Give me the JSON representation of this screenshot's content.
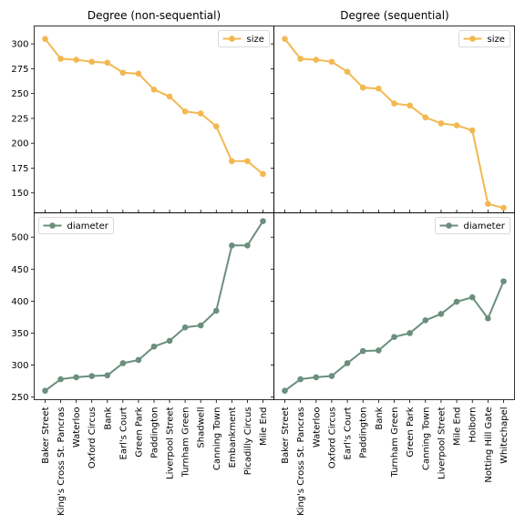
{
  "chart_data": [
    {
      "type": "line",
      "title": "Degree (non-sequential)",
      "xlabel": "",
      "ylabel": "",
      "ylim": [
        130,
        318
      ],
      "yticks": [
        150,
        175,
        200,
        225,
        250,
        275,
        300
      ],
      "legend": "upper right",
      "grid": false,
      "series": [
        {
          "name": "size",
          "color": "#f2b851",
          "values": [
            305,
            285,
            284,
            282,
            281,
            271,
            270,
            254,
            247,
            232,
            230,
            217,
            182,
            182,
            169
          ]
        }
      ]
    },
    {
      "type": "line",
      "title": "Degree (sequential)",
      "xlabel": "",
      "ylabel": "",
      "ylim": [
        130,
        318
      ],
      "yticks": [
        150,
        175,
        200,
        225,
        250,
        275,
        300
      ],
      "legend": "upper right",
      "grid": false,
      "series": [
        {
          "name": "size",
          "color": "#f2b851",
          "values": [
            305,
            285,
            284,
            282,
            272,
            256,
            255,
            240,
            238,
            226,
            220,
            218,
            213,
            139,
            135
          ]
        }
      ]
    },
    {
      "type": "line",
      "title": "",
      "xlabel": "",
      "ylabel": "",
      "ylim": [
        246,
        538
      ],
      "yticks": [
        250,
        300,
        350,
        400,
        450,
        500
      ],
      "legend": "upper left",
      "grid": false,
      "categories": [
        "Baker Street",
        "King's Cross St. Pancras",
        "Waterloo",
        "Oxford Circus",
        "Bank",
        "Earl's Court",
        "Green Park",
        "Paddington",
        "Liverpool Street",
        "Turnham Green",
        "Shadwell",
        "Canning Town",
        "Embankment",
        "Picadilly Circus",
        "Mile End"
      ],
      "series": [
        {
          "name": "diameter",
          "color": "#6a8f7d",
          "values": [
            260,
            278,
            281,
            283,
            284,
            303,
            308,
            329,
            338,
            359,
            362,
            385,
            487,
            487,
            525
          ]
        }
      ]
    },
    {
      "type": "line",
      "title": "",
      "xlabel": "",
      "ylabel": "",
      "ylim": [
        246,
        538
      ],
      "yticks": [
        250,
        300,
        350,
        400,
        450,
        500
      ],
      "legend": "upper right",
      "grid": false,
      "categories": [
        "Baker Street",
        "King's Cross St. Pancras",
        "Waterloo",
        "Oxford Circus",
        "Earl's Court",
        "Paddington",
        "Bank",
        "Turnham Green",
        "Green Park",
        "Canning Town",
        "Liverpool Street",
        "Mile End",
        "Holborn",
        "Notting Hill Gate",
        "Whitechapel"
      ],
      "series": [
        {
          "name": "diameter",
          "color": "#6a8f7d",
          "values": [
            260,
            278,
            281,
            283,
            303,
            322,
            323,
            344,
            350,
            370,
            380,
            399,
            406,
            373,
            431
          ]
        }
      ]
    }
  ]
}
